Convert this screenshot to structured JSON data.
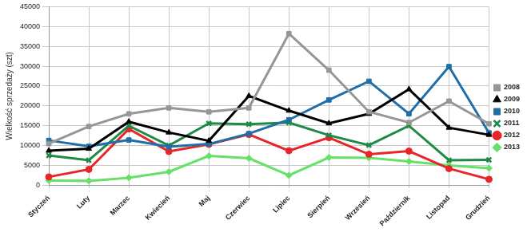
{
  "chart_data": {
    "type": "line",
    "y_label": "Wielkość sprzedaży (szt)",
    "categories": [
      "Styczeń",
      "Luty",
      "Marzec",
      "Kwiecień",
      "Maj",
      "Czerwiec",
      "Lipiec",
      "Sierpień",
      "Wrzesień",
      "Październik",
      "Listopad",
      "Grudzień"
    ],
    "series": [
      {
        "name": "2008",
        "color": "#969696",
        "marker": "square",
        "values": [
          10500,
          14800,
          18000,
          19500,
          18500,
          19500,
          38200,
          29000,
          18500,
          15800,
          21200,
          15500
        ]
      },
      {
        "name": "2009",
        "color": "#000000",
        "marker": "triangle",
        "values": [
          8700,
          9200,
          16000,
          13300,
          11200,
          22500,
          18800,
          15600,
          18000,
          24200,
          14500,
          12700
        ]
      },
      {
        "name": "2010",
        "color": "#1f6ea8",
        "marker": "square",
        "values": [
          11300,
          9800,
          11400,
          9700,
          10400,
          13000,
          16500,
          21500,
          26200,
          18000,
          29900,
          13200
        ]
      },
      {
        "name": "2011",
        "color": "#1e8a45",
        "marker": "x",
        "values": [
          7500,
          6300,
          15000,
          10000,
          15600,
          15400,
          15800,
          12600,
          10100,
          15000,
          6300,
          6400
        ]
      },
      {
        "name": "2012",
        "color": "#e8262a",
        "marker": "circle",
        "values": [
          2100,
          4000,
          14200,
          8500,
          10300,
          12800,
          8700,
          12000,
          7800,
          8600,
          4200,
          1500
        ]
      },
      {
        "name": "2013",
        "color": "#66e066",
        "marker": "diamond",
        "values": [
          1200,
          1100,
          1900,
          3400,
          7400,
          6800,
          2500,
          7000,
          6900,
          6000,
          5000,
          4300
        ]
      }
    ],
    "ylim": [
      0,
      45000
    ],
    "yticks": [
      0,
      5000,
      10000,
      15000,
      20000,
      25000,
      30000,
      35000,
      40000,
      45000
    ],
    "grid": true,
    "legend": "right"
  }
}
